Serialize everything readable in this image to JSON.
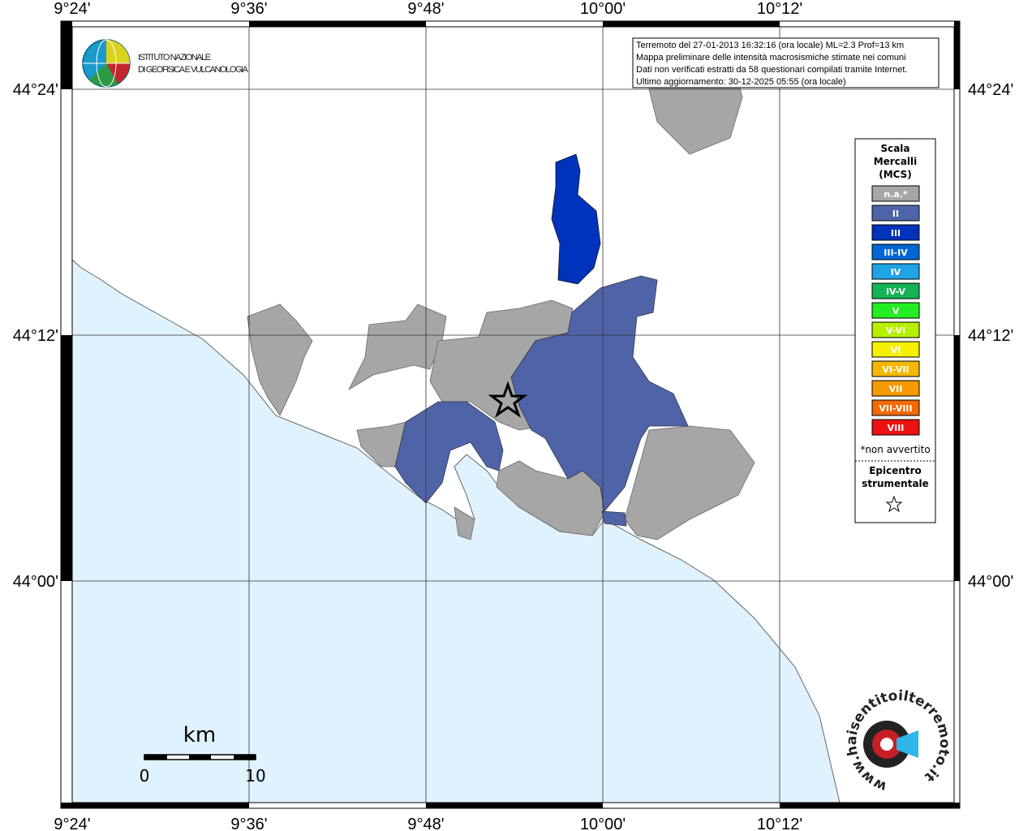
{
  "map": {
    "x_labels": [
      "9°24'",
      "9°36'",
      "9°48'",
      "10°00'",
      "10°12'"
    ],
    "y_labels": [
      "44°24'",
      "44°12'",
      "44°00'"
    ],
    "info": [
      "Terremoto del 27-01-2013 16:32:16 (ora locale) ML=2.3 Prof=13 km",
      "Mappa preliminare delle intensità macrosismiche stimate nei comuni",
      "Dati non verificati estratti da 58 questionari compilati tramite Internet.",
      "Ultimo aggiornamento: 30-12-2025 05:55 (ora locale)"
    ],
    "legend": {
      "title": [
        "Scala",
        "Mercalli",
        "(MCS)"
      ],
      "items": [
        {
          "label": "n.a.*",
          "color": "#a6a6a6"
        },
        {
          "label": "II",
          "color": "#4f64a8"
        },
        {
          "label": "III",
          "color": "#0033bb"
        },
        {
          "label": "III-IV",
          "color": "#0066d6"
        },
        {
          "label": "IV",
          "color": "#1fa3e6"
        },
        {
          "label": "IV-V",
          "color": "#15b355"
        },
        {
          "label": "V",
          "color": "#22ee22"
        },
        {
          "label": "V-VI",
          "color": "#b6f000"
        },
        {
          "label": "VI",
          "color": "#f5f000"
        },
        {
          "label": "VI-VII",
          "color": "#f5b800"
        },
        {
          "label": "VII",
          "color": "#f59a00"
        },
        {
          "label": "VII-VIII",
          "color": "#f26a00"
        },
        {
          "label": "VIII",
          "color": "#ee1111"
        }
      ],
      "note": "*non avvertito",
      "epicenter": [
        "Epicentro",
        "strumentale"
      ]
    },
    "logo": [
      "ISTITUTO NAZIONALE",
      "DI GEOFISICA E VULCANOLOGIA"
    ],
    "site": "www.haisentitoilterremoto.it",
    "scale": {
      "unit": "km",
      "labels": [
        "0",
        "10"
      ]
    }
  }
}
